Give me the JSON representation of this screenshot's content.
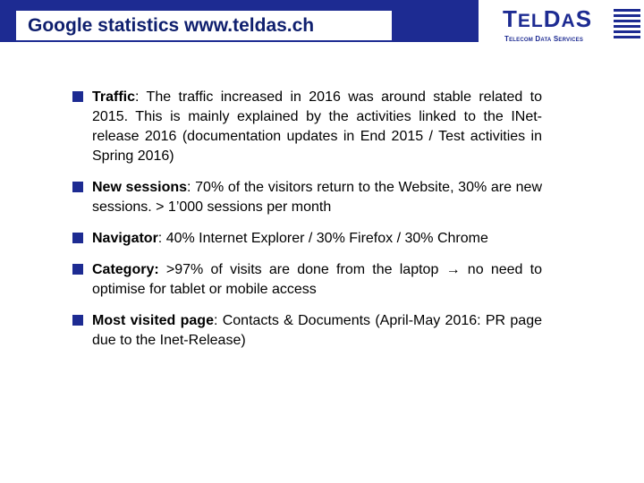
{
  "header": {
    "title": "Google statistics www.teldas.ch"
  },
  "logo": {
    "name": "TELDAS",
    "subtitle": "TELECOM DATA SERVICES"
  },
  "bullets": [
    {
      "term": "Traffic",
      "text": ": The traffic increased in 2016 was around stable related to 2015. This is mainly explained by the activities linked to the INet-release 2016 (documentation updates in End 2015 / Test activities in Spring 2016)"
    },
    {
      "term": "New sessions",
      "text": ": 70% of the visitors return to the Website, 30% are new sessions. > 1’000 sessions per month"
    },
    {
      "term": "Navigator",
      "text": ": 40% Internet Explorer / 30% Firefox / 30% Chrome"
    },
    {
      "term": "Category:",
      "text": " >97% of visits are done from the laptop → no need to optimise for tablet or mobile access"
    },
    {
      "term": "Most visited page",
      "text": ": Contacts & Documents (April-May 2016: PR page due to the Inet-Release)"
    }
  ]
}
